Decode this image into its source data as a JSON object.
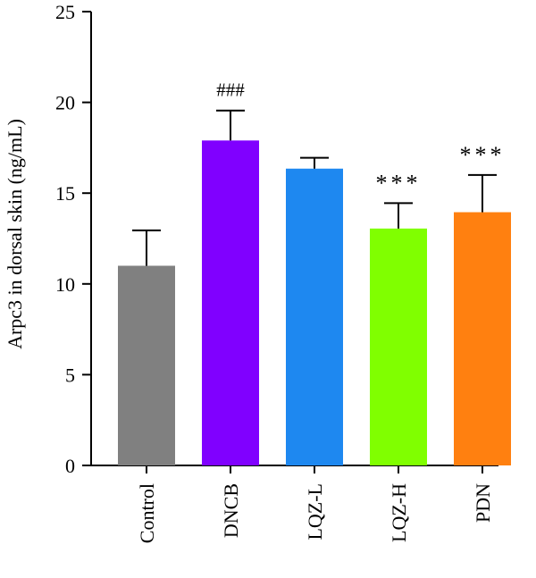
{
  "chart_data": {
    "type": "bar",
    "title": "",
    "xlabel": "",
    "ylabel": "Arpc3 in dorsal skin (ng/mL)",
    "ylim": [
      0,
      25
    ],
    "yticks": [
      "0",
      "5",
      "10",
      "15",
      "20",
      "25"
    ],
    "categories": [
      "Control",
      "DNCB",
      "LQZ-L",
      "LQZ-H",
      "PDN"
    ],
    "values": [
      11.0,
      17.9,
      16.35,
      13.05,
      13.95
    ],
    "errors": [
      1.95,
      1.65,
      0.6,
      1.4,
      2.05
    ],
    "colors": [
      "#808080",
      "#8000ff",
      "#1e88f0",
      "#80ff00",
      "#ff8010"
    ],
    "annotations": [
      "",
      "###",
      "",
      "***",
      "***"
    ],
    "grid": false,
    "legend": "none"
  }
}
